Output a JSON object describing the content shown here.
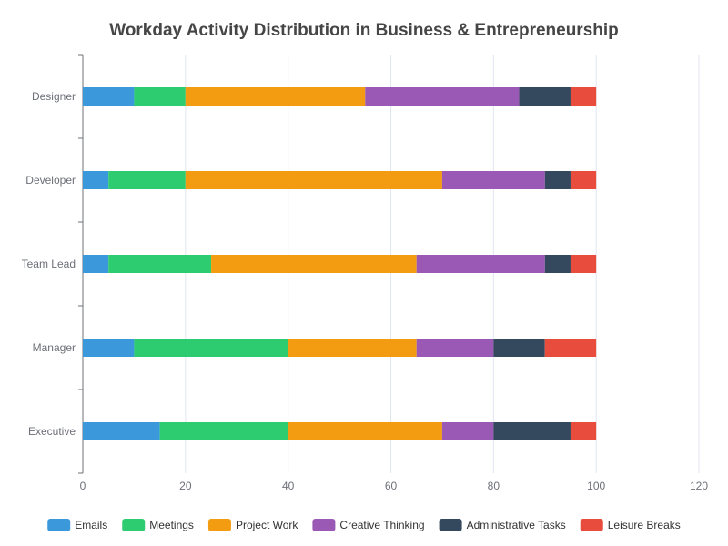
{
  "chart_data": {
    "type": "bar",
    "orientation": "horizontal",
    "stacked": true,
    "title": "Workday Activity Distribution in Business & Entrepreneurship",
    "categories": [
      "Designer",
      "Developer",
      "Team Lead",
      "Manager",
      "Executive"
    ],
    "series": [
      {
        "name": "Emails",
        "color": "#3a98db",
        "values": [
          10,
          5,
          5,
          10,
          15
        ]
      },
      {
        "name": "Meetings",
        "color": "#2ecc71",
        "values": [
          10,
          15,
          20,
          30,
          25
        ]
      },
      {
        "name": "Project Work",
        "color": "#f39c12",
        "values": [
          35,
          50,
          40,
          25,
          30
        ]
      },
      {
        "name": "Creative Thinking",
        "color": "#9b59b6",
        "values": [
          30,
          20,
          25,
          15,
          10
        ]
      },
      {
        "name": "Administrative Tasks",
        "color": "#34495e",
        "values": [
          10,
          5,
          5,
          10,
          15
        ]
      },
      {
        "name": "Leisure Breaks",
        "color": "#e74c3c",
        "values": [
          5,
          5,
          5,
          10,
          5
        ]
      }
    ],
    "xlim": [
      0,
      120
    ],
    "xticks": [
      0,
      20,
      40,
      60,
      80,
      100,
      120
    ],
    "xlabel": "",
    "ylabel": "",
    "grid": true,
    "legend": "bottom"
  }
}
